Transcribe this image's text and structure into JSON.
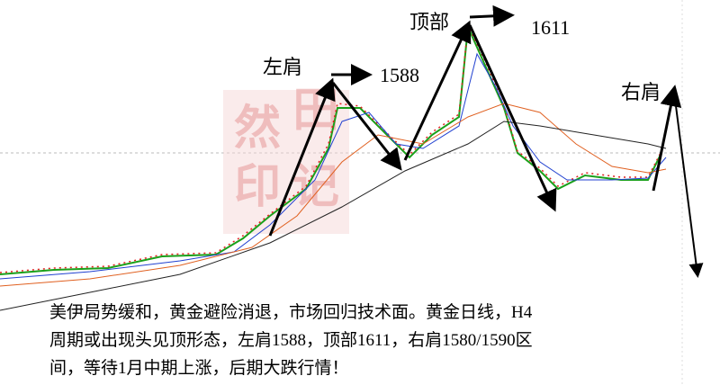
{
  "annotations": {
    "left_shoulder": "左肩",
    "left_shoulder_price": "1588",
    "top": "顶部",
    "top_price": "1611",
    "right_shoulder": "右肩"
  },
  "watermark": [
    "然",
    "田",
    "印",
    "记"
  ],
  "caption": [
    "美伊局势缓和，黄金避险消退，市场回归技术面。黄金日线，H4",
    "周期或出现头见顶形态，左肩1588，顶部1611，右肩1580/1590区",
    "间，等待1月中期上涨，后期大跌行情！"
  ]
}
